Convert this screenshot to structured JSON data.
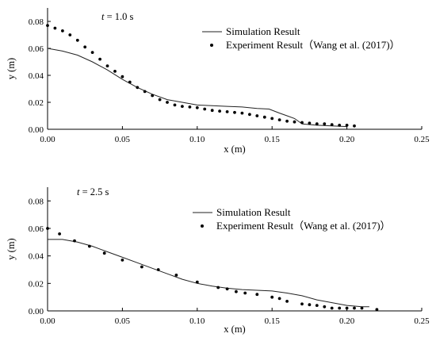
{
  "chart_data": [
    {
      "type": "scatter",
      "title": "",
      "annotation": {
        "var": "t",
        "rest": " = 1.0 s"
      },
      "xlabel": "x (m)",
      "ylabel": "y (m)",
      "xlim": [
        0,
        0.25
      ],
      "ylim": [
        0,
        0.09
      ],
      "xticks": [
        "0.00",
        "0.05",
        "0.10",
        "0.15",
        "0.20",
        "0.25"
      ],
      "yticks": [
        "0.00",
        "0.02",
        "0.04",
        "0.06",
        "0.08"
      ],
      "xtick_values": [
        0,
        0.05,
        0.1,
        0.15,
        0.2,
        0.25
      ],
      "ytick_values": [
        0,
        0.02,
        0.04,
        0.06,
        0.08
      ],
      "grid": false,
      "legend_position": "top-right",
      "series": [
        {
          "name": "Simulation Result",
          "type": "line",
          "x": [
            0.0,
            0.01,
            0.02,
            0.03,
            0.04,
            0.05,
            0.06,
            0.07,
            0.08,
            0.09,
            0.1,
            0.11,
            0.12,
            0.13,
            0.14,
            0.148,
            0.155,
            0.16,
            0.165,
            0.17,
            0.18,
            0.19,
            0.2
          ],
          "y": [
            0.06,
            0.058,
            0.055,
            0.05,
            0.044,
            0.037,
            0.031,
            0.026,
            0.022,
            0.02,
            0.018,
            0.0175,
            0.017,
            0.0165,
            0.0155,
            0.015,
            0.012,
            0.01,
            0.008,
            0.004,
            0.003,
            0.0025,
            0.002
          ]
        },
        {
          "name": "Experiment Result（Wang et al. (2017)）",
          "type": "scatter",
          "x": [
            0.0,
            0.005,
            0.01,
            0.015,
            0.02,
            0.025,
            0.03,
            0.035,
            0.04,
            0.045,
            0.05,
            0.055,
            0.06,
            0.065,
            0.07,
            0.075,
            0.08,
            0.085,
            0.09,
            0.095,
            0.1,
            0.105,
            0.11,
            0.115,
            0.12,
            0.125,
            0.13,
            0.135,
            0.14,
            0.145,
            0.15,
            0.155,
            0.16,
            0.165,
            0.17,
            0.175,
            0.18,
            0.185,
            0.19,
            0.195,
            0.2,
            0.205
          ],
          "y": [
            0.077,
            0.075,
            0.073,
            0.07,
            0.066,
            0.061,
            0.057,
            0.052,
            0.047,
            0.043,
            0.039,
            0.035,
            0.031,
            0.028,
            0.025,
            0.022,
            0.02,
            0.018,
            0.017,
            0.0165,
            0.016,
            0.015,
            0.014,
            0.0135,
            0.013,
            0.0125,
            0.012,
            0.011,
            0.01,
            0.009,
            0.008,
            0.007,
            0.006,
            0.0055,
            0.005,
            0.0045,
            0.004,
            0.004,
            0.0035,
            0.003,
            0.003,
            0.0025
          ]
        }
      ]
    },
    {
      "type": "scatter",
      "title": "",
      "annotation": {
        "var": "t",
        "rest": " = 2.5 s"
      },
      "xlabel": "x (m)",
      "ylabel": "y (m)",
      "xlim": [
        0,
        0.25
      ],
      "ylim": [
        0,
        0.09
      ],
      "xticks": [
        "0.00",
        "0.05",
        "0.10",
        "0.15",
        "0.20",
        "0.25"
      ],
      "yticks": [
        "0.00",
        "0.02",
        "0.04",
        "0.06",
        "0.08"
      ],
      "xtick_values": [
        0,
        0.05,
        0.1,
        0.15,
        0.2,
        0.25
      ],
      "ytick_values": [
        0,
        0.02,
        0.04,
        0.06,
        0.08
      ],
      "grid": false,
      "legend_position": "top-right",
      "series": [
        {
          "name": "Simulation Result",
          "type": "line",
          "x": [
            0.0,
            0.01,
            0.02,
            0.03,
            0.04,
            0.05,
            0.06,
            0.07,
            0.08,
            0.09,
            0.1,
            0.11,
            0.12,
            0.13,
            0.14,
            0.15,
            0.16,
            0.17,
            0.18,
            0.19,
            0.2,
            0.21,
            0.215
          ],
          "y": [
            0.052,
            0.052,
            0.05,
            0.047,
            0.043,
            0.039,
            0.035,
            0.031,
            0.027,
            0.023,
            0.02,
            0.018,
            0.0165,
            0.0155,
            0.015,
            0.0145,
            0.013,
            0.011,
            0.008,
            0.006,
            0.004,
            0.003,
            0.003
          ]
        },
        {
          "name": "Experiment Result（Wang et al. (2017)）",
          "type": "scatter",
          "x": [
            0.0,
            0.008,
            0.018,
            0.028,
            0.038,
            0.05,
            0.063,
            0.074,
            0.086,
            0.1,
            0.114,
            0.12,
            0.126,
            0.132,
            0.14,
            0.15,
            0.155,
            0.16,
            0.17,
            0.175,
            0.18,
            0.185,
            0.19,
            0.195,
            0.2,
            0.205,
            0.21,
            0.22
          ],
          "y": [
            0.06,
            0.056,
            0.051,
            0.047,
            0.042,
            0.037,
            0.032,
            0.03,
            0.026,
            0.021,
            0.017,
            0.016,
            0.014,
            0.013,
            0.012,
            0.01,
            0.009,
            0.007,
            0.005,
            0.0045,
            0.004,
            0.003,
            0.002,
            0.002,
            0.002,
            0.002,
            0.002,
            0.001
          ]
        }
      ]
    }
  ]
}
